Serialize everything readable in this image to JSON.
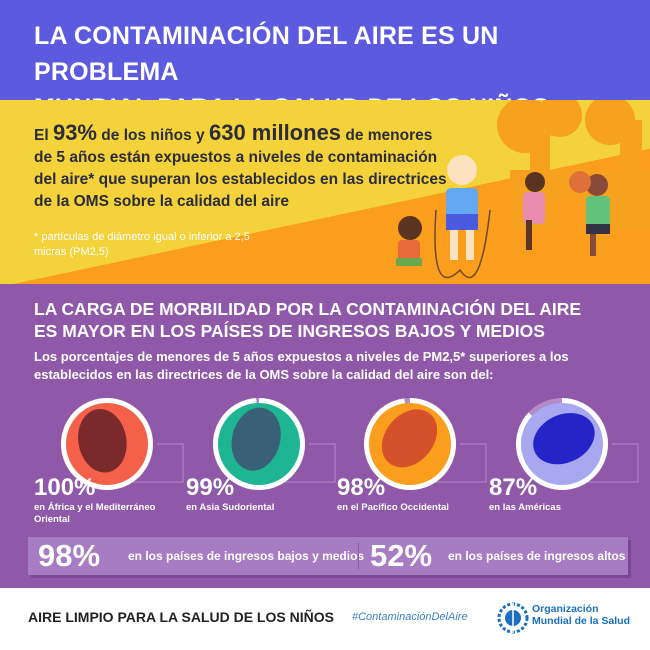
{
  "header": {
    "title_line1": "LA CONTAMINACIÓN DEL AIRE ES UN PROBLEMA",
    "title_line2": "MUNDIAL PARA LA SALUD DE LOS NIÑOS"
  },
  "lead": {
    "p1": "El ",
    "pct": "93%",
    "p2": " de los niños y ",
    "num": "630 millones",
    "p3": " de menores de 5 años están expuestos a niveles de contaminación del aire* que superan los establecidos en las directrices de la OMS sobre la calidad del aire",
    "note": "* partículas de diámetro igual o inferior a 2,5 micras (PM2,5)"
  },
  "section": {
    "title_line1": "LA CARGA DE MORBILIDAD POR LA CONTAMINACIÓN DEL AIRE",
    "title_line2": "ES MAYOR EN LOS PAÍSES DE INGRESOS BAJOS Y MEDIOS",
    "subtitle": "Los porcentajes de menores de 5 años expuestos a niveles de PM2,5* superiores a los establecidos en las directrices de la OMS sobre la calidad del aire son del:"
  },
  "regions": [
    {
      "pct": "100%",
      "value": 100,
      "label": "en África y el Mediterráneo Oriental",
      "fill": "#f4604a",
      "land": "#7a2a2a"
    },
    {
      "pct": "99%",
      "value": 99,
      "label": "en Asia Sudoriental",
      "fill": "#1db592",
      "land": "#3a6078"
    },
    {
      "pct": "98%",
      "value": 98,
      "label": "en el Pacífico Occidental",
      "fill": "#fb9d1d",
      "land": "#d4502a"
    },
    {
      "pct": "87%",
      "value": 87,
      "label": "en las Américas",
      "fill": "#a7a8f0",
      "land": "#2424c8"
    }
  ],
  "income": {
    "low_pct": "98%",
    "low_label": "en los países de ingresos bajos y medios",
    "high_pct": "52%",
    "high_label": "en los países de ingresos altos"
  },
  "footer": {
    "slogan": "AIRE LIMPIO PARA LA SALUD DE LOS NIÑOS",
    "hashtag": "#ContaminaciónDelAire",
    "org_line1": "Organización",
    "org_line2": "Mundial de la Salud"
  }
}
